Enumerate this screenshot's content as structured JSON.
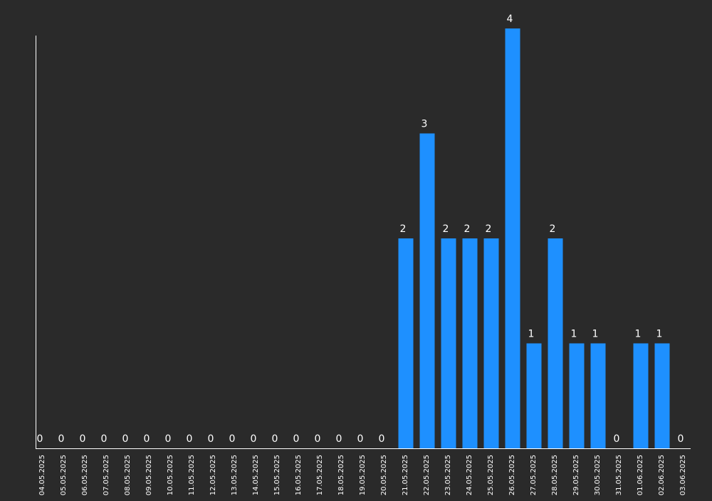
{
  "colors": {
    "background": "#2a2a2a",
    "bar": "#1e90ff",
    "axis": "#ffffff",
    "text": "#ffffff"
  },
  "chart_data": {
    "type": "bar",
    "title": "",
    "xlabel": "",
    "ylabel": "",
    "ylim": [
      0,
      4
    ],
    "grid": false,
    "legend": "none",
    "categories": [
      "04.05.2025",
      "05.05.2025",
      "06.05.2025",
      "07.05.2025",
      "08.05.2025",
      "09.05.2025",
      "10.05.2025",
      "11.05.2025",
      "12.05.2025",
      "13.05.2025",
      "14.05.2025",
      "15.05.2025",
      "16.05.2025",
      "17.05.2025",
      "18.05.2025",
      "19.05.2025",
      "20.05.2025",
      "21.05.2025",
      "22.05.2025",
      "23.05.2025",
      "24.05.2025",
      "25.05.2025",
      "26.05.2025",
      "27.05.2025",
      "28.05.2025",
      "29.05.2025",
      "30.05.2025",
      "31.05.2025",
      "01.06.2025",
      "02.06.2025",
      "03.06.2025"
    ],
    "values": [
      0,
      0,
      0,
      0,
      0,
      0,
      0,
      0,
      0,
      0,
      0,
      0,
      0,
      0,
      0,
      0,
      0,
      2,
      3,
      2,
      2,
      2,
      4,
      1,
      2,
      1,
      1,
      0,
      1,
      1,
      0
    ]
  }
}
